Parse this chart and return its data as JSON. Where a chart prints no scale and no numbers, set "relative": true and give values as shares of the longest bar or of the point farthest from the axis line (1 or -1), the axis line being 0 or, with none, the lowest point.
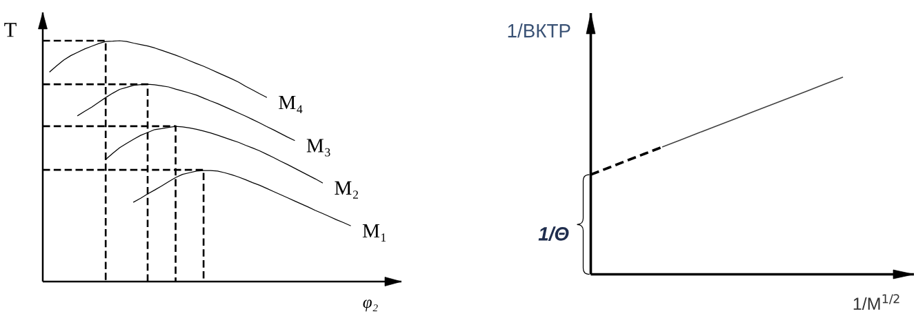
{
  "chart_data": [
    {
      "type": "line",
      "relative": true,
      "xlabel": "φ₂",
      "ylabel": "T",
      "categories": [
        null,
        null,
        null,
        null,
        null,
        null,
        null,
        null,
        null,
        null,
        null,
        null,
        null,
        null,
        null,
        null,
        null,
        null,
        null,
        null,
        null,
        null,
        null,
        null,
        null,
        null,
        null,
        null,
        null,
        null,
        null,
        null,
        null,
        null,
        null,
        null,
        null,
        null,
        null,
        null,
        null,
        null,
        null,
        null,
        null
      ],
      "series": [
        {
          "name": "M₁",
          "color": "#000000",
          "values": [
            null,
            null,
            null,
            null,
            null,
            null,
            null,
            null,
            null,
            null,
            null,
            null,
            null,
            0.33,
            0.346,
            0.364,
            0.38,
            0.397,
            0.415,
            0.432,
            0.445,
            0.452,
            0.459,
            0.461,
            0.461,
            0.459,
            0.452,
            0.444,
            0.434,
            0.423,
            0.411,
            0.4,
            0.387,
            0.374,
            0.361,
            0.348,
            0.335,
            0.322,
            0.309,
            0.295,
            0.283,
            0.27,
            0.257,
            0.245,
            0.232
          ]
        },
        {
          "name": "M₂",
          "color": "#000000",
          "values": [
            null,
            null,
            null,
            null,
            null,
            null,
            null,
            null,
            null,
            0.507,
            0.532,
            0.556,
            0.574,
            0.591,
            0.607,
            0.619,
            0.631,
            0.635,
            0.64,
            0.644,
            0.642,
            0.638,
            0.632,
            0.625,
            0.617,
            0.608,
            0.598,
            0.588,
            0.578,
            0.566,
            0.555,
            0.543,
            0.529,
            0.515,
            0.5,
            0.486,
            0.471,
            0.456,
            0.441,
            0.426,
            0.41,
            null,
            null,
            null,
            null
          ]
        },
        {
          "name": "M₃",
          "color": "#000000",
          "values": [
            null,
            null,
            null,
            null,
            null,
            0.689,
            0.707,
            0.724,
            0.744,
            0.764,
            0.782,
            0.798,
            0.806,
            0.815,
            0.818,
            0.819,
            0.817,
            0.813,
            0.808,
            0.799,
            0.791,
            0.783,
            0.774,
            0.762,
            0.75,
            0.739,
            0.726,
            0.713,
            0.7,
            0.687,
            0.673,
            0.659,
            0.644,
            0.63,
            0.615,
            0.6,
            0.586,
            null,
            null,
            null,
            null,
            null,
            null,
            null,
            null
          ]
        },
        {
          "name": "M₄",
          "color": "#000000",
          "values": [
            null,
            0.871,
            0.896,
            0.92,
            0.938,
            0.952,
            0.966,
            0.977,
            0.988,
            0.997,
            0.998,
            1.0,
            0.997,
            0.99,
            0.984,
            0.978,
            0.97,
            0.96,
            0.95,
            0.94,
            0.929,
            0.917,
            0.905,
            0.894,
            0.881,
            0.868,
            0.855,
            0.842,
            0.828,
            0.811,
            0.796,
            0.78,
            0.765,
            null,
            null,
            null,
            null,
            null,
            null,
            null,
            null,
            null,
            null,
            null,
            null
          ]
        },
        {
          "type": "step",
          "color": "#000000",
          "line_style": "dashed",
          "values": [
            0.464,
            0.464,
            0.464,
            0.464,
            0.464,
            0.464,
            0.464,
            0.464,
            0.464,
            0.464,
            0.464,
            0.464,
            0.464,
            0.464,
            0.464,
            0.464,
            0.464,
            0.464,
            0.464,
            0.464,
            0.464,
            0.464,
            0.464,
            0,
            null,
            null,
            null,
            null,
            null,
            null,
            null,
            null,
            null,
            null,
            null,
            null,
            null,
            null,
            null,
            null,
            null,
            null,
            null,
            null,
            null
          ]
        },
        {
          "type": "step",
          "color": "#000000",
          "line_style": "dashed",
          "values": [
            0.645,
            0.645,
            0.645,
            0.645,
            0.645,
            0.645,
            0.645,
            0.645,
            0.645,
            0.645,
            0.645,
            0.645,
            0.645,
            0.645,
            0.645,
            0.645,
            0.645,
            0.645,
            0.645,
            0,
            null,
            null,
            null,
            null,
            null,
            null,
            null,
            null,
            null,
            null,
            null,
            null,
            null,
            null,
            null,
            null,
            null,
            null,
            null,
            null,
            null,
            null,
            null,
            null,
            null
          ]
        },
        {
          "type": "step",
          "color": "#000000",
          "line_style": "dashed",
          "values": [
            0.819,
            0.819,
            0.819,
            0.819,
            0.819,
            0.819,
            0.819,
            0.819,
            0.819,
            0.819,
            0.819,
            0.819,
            0.819,
            0.819,
            0.819,
            0,
            null,
            null,
            null,
            null,
            null,
            null,
            null,
            null,
            null,
            null,
            null,
            null,
            null,
            null,
            null,
            null,
            null,
            null,
            null,
            null,
            null,
            null,
            null,
            null,
            null,
            null,
            null,
            null,
            null
          ]
        },
        {
          "type": "step",
          "color": "#000000",
          "line_style": "dashed",
          "values": [
            1.0,
            1.0,
            1.0,
            1.0,
            1.0,
            1.0,
            1.0,
            1.0,
            1.0,
            0,
            null,
            null,
            null,
            null,
            null,
            null,
            null,
            null,
            null,
            null,
            null,
            null,
            null,
            null,
            null,
            null,
            null,
            null,
            null,
            null,
            null,
            null,
            null,
            null,
            null,
            null,
            null,
            null,
            null,
            null,
            null,
            null,
            null,
            null,
            null
          ]
        }
      ]
    },
    {
      "type": "line",
      "relative": true,
      "xlabel": "1/M$^{1/2}$",
      "ylabel": "1/ВКТР",
      "categories": [
        null,
        null,
        null,
        null,
        null,
        null,
        null,
        null,
        null,
        null,
        null,
        null,
        null,
        null,
        null
      ],
      "series": [
        {
          "color": "#000000",
          "line_style": "dashed",
          "values": [
            0.506,
            0.541,
            0.577,
            0.612,
            0.647,
            null,
            null,
            null,
            null,
            null,
            null,
            null,
            null,
            null,
            null
          ]
        },
        {
          "color": "#404040",
          "values": [
            null,
            null,
            null,
            null,
            0.647,
            0.682,
            0.718,
            0.753,
            0.788,
            0.824,
            0.859,
            0.894,
            0.929,
            0.965,
            1.0
          ]
        }
      ],
      "annotations": [
        "1/Θ"
      ]
    }
  ]
}
